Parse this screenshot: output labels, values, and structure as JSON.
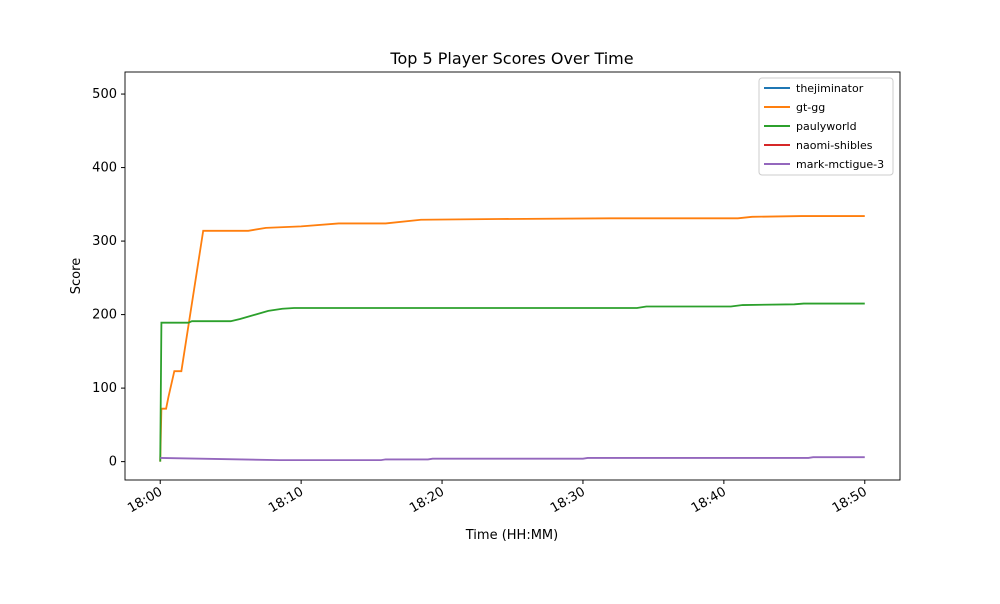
{
  "chart_data": {
    "type": "line",
    "title": "Top 5 Player Scores Over Time",
    "xlabel": "Time (HH:MM)",
    "ylabel": "Score",
    "xlim": [
      "17:57:30",
      "18:52:30"
    ],
    "ylim": [
      -25,
      530
    ],
    "xticks": [
      "18:00",
      "18:10",
      "18:20",
      "18:30",
      "18:40",
      "18:50"
    ],
    "yticks": [
      0,
      100,
      200,
      300,
      400,
      500
    ],
    "grid": false,
    "legend_position": "top-right",
    "series": [
      {
        "name": "thejiminator",
        "color": "#1f77b4",
        "x": [],
        "y": []
      },
      {
        "name": "gt-gg",
        "color": "#ff7f0e",
        "x": [
          "18:00:00",
          "18:00:05",
          "18:00:25",
          "18:00:35",
          "18:01:00",
          "18:01:30",
          "18:03:03",
          "18:06:15",
          "18:07:30",
          "18:10:00",
          "18:12:40",
          "18:16:00",
          "18:18:30",
          "18:24:00",
          "18:32:00",
          "18:41:00",
          "18:42:00",
          "18:45:30",
          "18:50:00"
        ],
        "y": [
          0,
          72,
          72,
          88,
          123,
          123,
          314,
          314,
          318,
          320,
          324,
          324,
          329,
          330,
          331,
          331,
          333,
          334,
          334
        ]
      },
      {
        "name": "paulyworld",
        "color": "#2ca02c",
        "x": [
          "18:00:00",
          "18:00:05",
          "18:02:00",
          "18:02:15",
          "18:05:00",
          "18:05:40",
          "18:06:45",
          "18:07:40",
          "18:08:40",
          "18:09:30",
          "18:33:50",
          "18:34:30",
          "18:40:30",
          "18:41:20",
          "18:45:00",
          "18:45:40",
          "18:50:00"
        ],
        "y": [
          0,
          189,
          189,
          191,
          191,
          194,
          200,
          205,
          208,
          209,
          209,
          211,
          211,
          213,
          214,
          215,
          215
        ]
      },
      {
        "name": "naomi-shibles",
        "color": "#d62728",
        "x": [],
        "y": []
      },
      {
        "name": "mark-mctigue-3",
        "color": "#9467bd",
        "x": [
          "18:00:00",
          "18:08:30",
          "18:15:40",
          "18:16:00",
          "18:19:00",
          "18:19:20",
          "18:30:00",
          "18:30:20",
          "18:46:00",
          "18:46:20",
          "18:50:00"
        ],
        "y": [
          5,
          2,
          2,
          3,
          3,
          4,
          4,
          5,
          5,
          6,
          6
        ]
      }
    ]
  }
}
